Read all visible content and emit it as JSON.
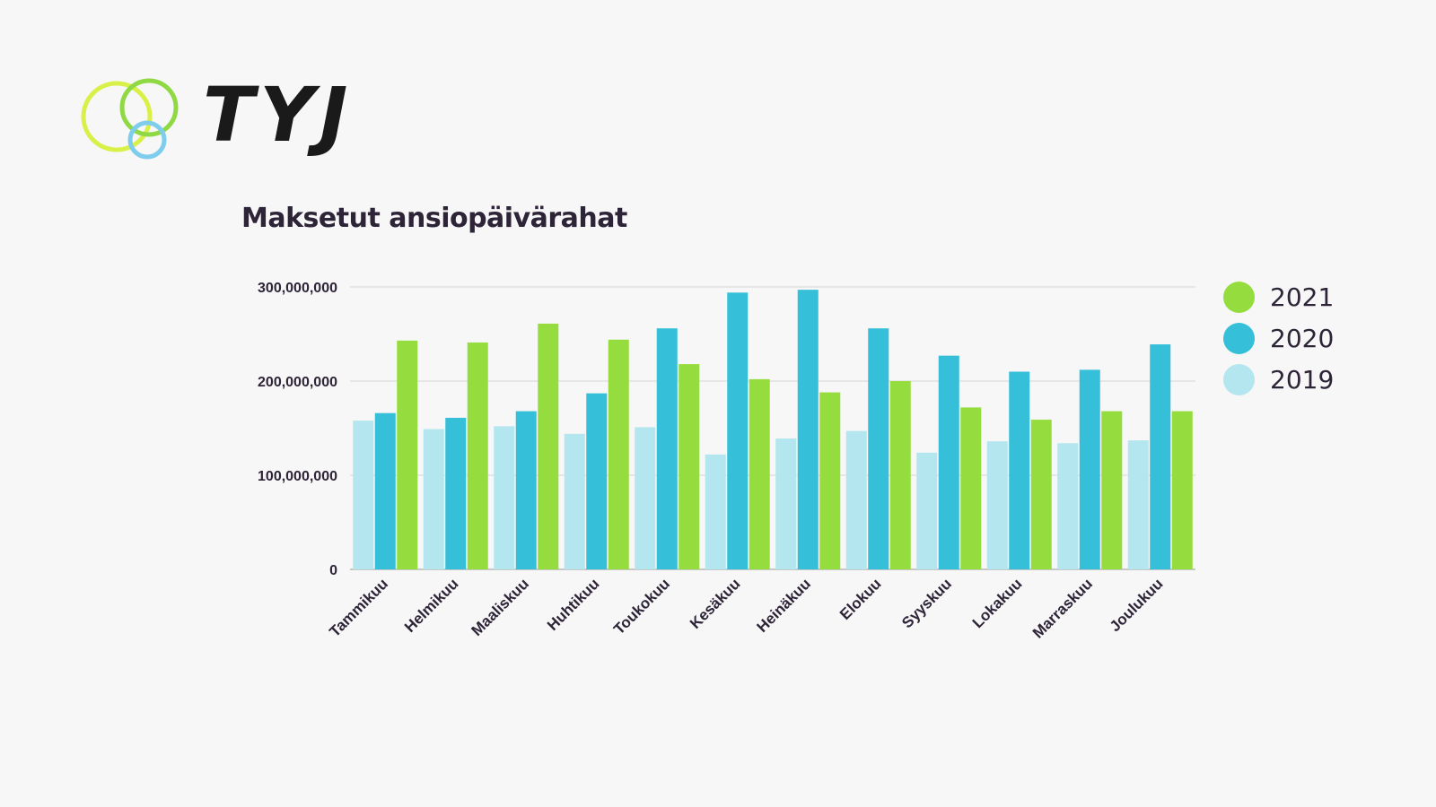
{
  "logo": {
    "text": "TYJ",
    "icon": "three-rings-logo-icon"
  },
  "colors": {
    "c2021": "#95dd3f",
    "c2020": "#36bfd8",
    "c2019": "#b3e6ef",
    "grid": "#d6d6d6",
    "axis": "#9a9a9a",
    "ring_yellow": "#d8f047",
    "ring_green": "#8fd944",
    "ring_blue": "#7fcdec"
  },
  "chart_data": {
    "type": "bar",
    "title": "Maksetut ansiopäivärahat",
    "xlabel": "",
    "ylabel": "",
    "ylim": [
      0,
      300000000
    ],
    "yticks": [
      0,
      100000000,
      200000000,
      300000000
    ],
    "ytick_labels": [
      "0",
      "100,000,000",
      "200,000,000",
      "300,000,000"
    ],
    "grid": true,
    "legend_position": "right",
    "categories": [
      "Tammikuu",
      "Helmikuu",
      "Maaliskuu",
      "Huhtikuu",
      "Toukokuu",
      "Kesäkuu",
      "Heinäkuu",
      "Elokuu",
      "Syyskuu",
      "Lokakuu",
      "Marraskuu",
      "Joulukuu"
    ],
    "series": [
      {
        "name": "2019",
        "color": "#b3e6ef",
        "values": [
          158000000,
          149000000,
          152000000,
          144000000,
          151000000,
          122000000,
          139000000,
          147000000,
          124000000,
          136000000,
          134000000,
          137000000
        ]
      },
      {
        "name": "2020",
        "color": "#36bfd8",
        "values": [
          166000000,
          161000000,
          168000000,
          187000000,
          256000000,
          294000000,
          297000000,
          256000000,
          227000000,
          210000000,
          212000000,
          239000000
        ]
      },
      {
        "name": "2021",
        "color": "#95dd3f",
        "values": [
          243000000,
          241000000,
          261000000,
          244000000,
          218000000,
          202000000,
          188000000,
          200000000,
          172000000,
          159000000,
          168000000,
          168000000
        ]
      }
    ],
    "legend_order": [
      "2021",
      "2020",
      "2019"
    ]
  }
}
